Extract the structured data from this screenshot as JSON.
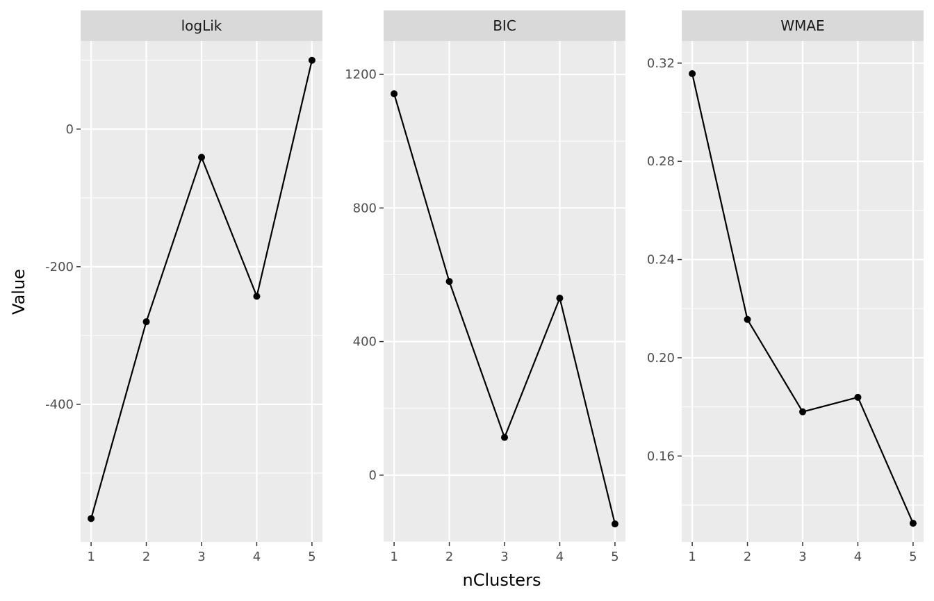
{
  "chart_data": {
    "type": "line",
    "xlabel": "nClusters",
    "ylabel": "Value",
    "panels": [
      {
        "title": "logLik",
        "x": [
          1,
          2,
          3,
          4,
          5
        ],
        "y": [
          -566,
          -280,
          -41,
          -243,
          100
        ],
        "ylim": [
          -600,
          128
        ],
        "yticks": [
          -400,
          -200,
          0
        ],
        "ytick_labels": [
          "-400",
          "-200",
          "0"
        ]
      },
      {
        "title": "BIC",
        "x": [
          1,
          2,
          3,
          4,
          5
        ],
        "y": [
          1142,
          580,
          113,
          530,
          -146
        ],
        "ylim": [
          -200,
          1300
        ],
        "yticks": [
          0,
          400,
          800,
          1200
        ],
        "ytick_labels": [
          "0",
          "400",
          "800",
          "1200"
        ]
      },
      {
        "title": "WMAE",
        "x": [
          1,
          2,
          3,
          4,
          5
        ],
        "y": [
          0.3157,
          0.2156,
          0.178,
          0.1839,
          0.1326
        ],
        "ylim": [
          0.125,
          0.329
        ],
        "yticks": [
          0.16,
          0.2,
          0.24,
          0.28,
          0.32
        ],
        "ytick_labels": [
          "0.16",
          "0.20",
          "0.24",
          "0.28",
          "0.32"
        ]
      }
    ],
    "xticks": [
      1,
      2,
      3,
      4,
      5
    ],
    "xtick_labels": [
      "1",
      "2",
      "3",
      "4",
      "5"
    ],
    "grid": true,
    "colors": {
      "panel_background": "#ebebeb",
      "strip_background": "#d9d9d9",
      "grid": "#ffffff",
      "line": "#000000",
      "point": "#000000",
      "tick_text": "#4d4d4d"
    }
  }
}
